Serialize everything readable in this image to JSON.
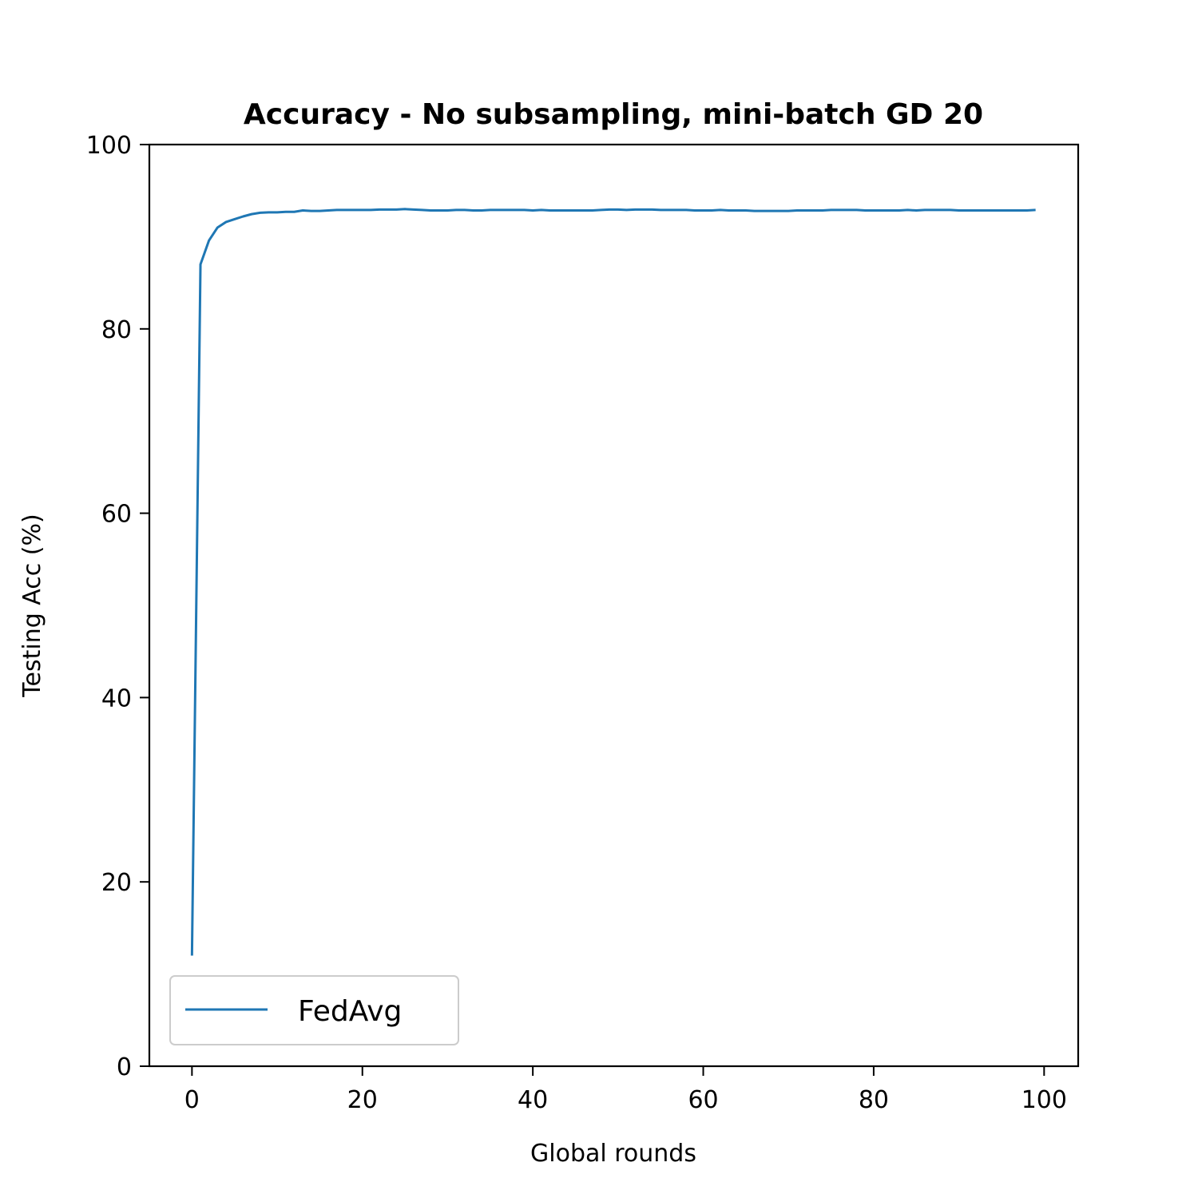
{
  "chart_data": {
    "type": "line",
    "title": "Accuracy - No subsampling, mini-batch GD 20",
    "xlabel": "Global rounds",
    "ylabel": "Testing Acc (%)",
    "xlim": [
      -5,
      104
    ],
    "ylim": [
      0,
      100
    ],
    "xticks": [
      0,
      20,
      40,
      60,
      80,
      100
    ],
    "yticks": [
      0,
      20,
      40,
      60,
      80,
      100
    ],
    "xtick_labels": [
      "0",
      "20",
      "40",
      "60",
      "80",
      "100"
    ],
    "ytick_labels": [
      "0",
      "20",
      "40",
      "60",
      "80",
      "100"
    ],
    "grid": false,
    "legend": {
      "position": "lower-left",
      "entries": [
        "FedAvg"
      ]
    },
    "series": [
      {
        "name": "FedAvg",
        "color": "#1f77b4",
        "x": [
          0,
          1,
          2,
          3,
          4,
          5,
          6,
          7,
          8,
          9,
          10,
          11,
          12,
          13,
          14,
          15,
          16,
          17,
          18,
          19,
          20,
          21,
          22,
          23,
          24,
          25,
          26,
          27,
          28,
          29,
          30,
          31,
          32,
          33,
          34,
          35,
          36,
          37,
          38,
          39,
          40,
          41,
          42,
          43,
          44,
          45,
          46,
          47,
          48,
          49,
          50,
          51,
          52,
          53,
          54,
          55,
          56,
          57,
          58,
          59,
          60,
          61,
          62,
          63,
          64,
          65,
          66,
          67,
          68,
          69,
          70,
          71,
          72,
          73,
          74,
          75,
          76,
          77,
          78,
          79,
          80,
          81,
          82,
          83,
          84,
          85,
          86,
          87,
          88,
          89,
          90,
          91,
          92,
          93,
          94,
          95,
          96,
          97,
          98,
          99
        ],
        "values": [
          12.0,
          87.0,
          89.6,
          91.0,
          91.6,
          91.9,
          92.2,
          92.45,
          92.6,
          92.65,
          92.65,
          92.7,
          92.7,
          92.85,
          92.8,
          92.8,
          92.85,
          92.9,
          92.9,
          92.9,
          92.9,
          92.9,
          92.95,
          92.95,
          92.95,
          93.0,
          92.95,
          92.9,
          92.85,
          92.85,
          92.85,
          92.9,
          92.9,
          92.85,
          92.85,
          92.9,
          92.9,
          92.9,
          92.9,
          92.9,
          92.85,
          92.9,
          92.85,
          92.85,
          92.85,
          92.85,
          92.85,
          92.85,
          92.9,
          92.95,
          92.95,
          92.9,
          92.95,
          92.95,
          92.95,
          92.9,
          92.9,
          92.9,
          92.9,
          92.85,
          92.85,
          92.85,
          92.9,
          92.85,
          92.85,
          92.85,
          92.8,
          92.8,
          92.8,
          92.8,
          92.8,
          92.85,
          92.85,
          92.85,
          92.85,
          92.9,
          92.9,
          92.9,
          92.9,
          92.85,
          92.85,
          92.85,
          92.85,
          92.85,
          92.9,
          92.85,
          92.9,
          92.9,
          92.9,
          92.9,
          92.85,
          92.85,
          92.85,
          92.85,
          92.85,
          92.85,
          92.85,
          92.85,
          92.85,
          92.9
        ]
      }
    ]
  }
}
